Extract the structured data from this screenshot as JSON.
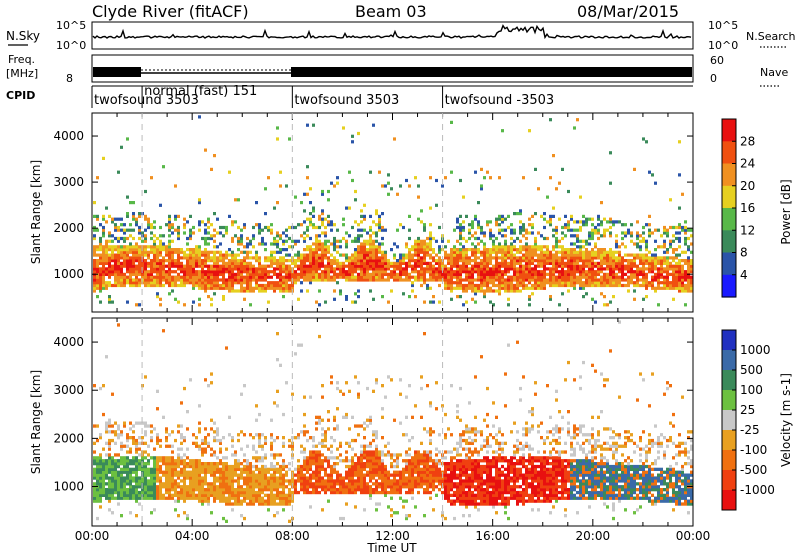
{
  "header": {
    "station": "Clyde River (fitACF)",
    "beam": "Beam 03",
    "date": "08/Mar/2015"
  },
  "panels": {
    "nsky_label": "N.Sky",
    "nsearch_label": "N.Search",
    "nsky_ticks_left": [
      "10^5",
      "10^0"
    ],
    "nsky_ticks_right": [
      "10^5",
      "10^0"
    ],
    "freq_label_1": "Freq.",
    "freq_label_2": "[MHz]",
    "freq_ticks": [
      "8"
    ],
    "nave_label": "Nave",
    "nave_ticks": [
      "60",
      "0"
    ],
    "cpid_label": "CPID",
    "cpid_segments": [
      {
        "label": "twofsound 3503",
        "start_h": 0,
        "end_h": 2
      },
      {
        "label": "normal (fast) 151",
        "start_h": 2,
        "end_h": 8
      },
      {
        "label": "twofsound 3503",
        "start_h": 8,
        "end_h": 14
      },
      {
        "label": "twofsound -3503",
        "start_h": 14,
        "end_h": 24
      }
    ]
  },
  "colors": {
    "power": [
      "#1a1aff",
      "#2a54a8",
      "#3a8a5a",
      "#58b848",
      "#e6d020",
      "#f09020",
      "#f05010",
      "#e81010"
    ],
    "velocity": [
      "#2030c0",
      "#3a6aa8",
      "#3a8a5a",
      "#6cc040",
      "#c8c8c8",
      "#e8a020",
      "#f07010",
      "#f04010",
      "#e81010"
    ]
  },
  "chart_data": [
    {
      "type": "heatmap",
      "name": "power",
      "ylabel": "Slant Range [km]",
      "xlabel": "",
      "ylim": [
        180,
        4500
      ],
      "y_ticks": [
        1000,
        2000,
        3000,
        4000
      ],
      "xlim_hours": [
        0,
        24
      ],
      "colorbar_label": "Power [dB]",
      "colorbar_ticks": [
        "28",
        "24",
        "20",
        "16",
        "12",
        "8",
        "4"
      ],
      "colorbar_range": [
        0,
        32
      ]
    },
    {
      "type": "heatmap",
      "name": "velocity",
      "ylabel": "Slant Range [km]",
      "xlabel": "Time UT",
      "ylim": [
        180,
        4500
      ],
      "y_ticks": [
        1000,
        2000,
        3000,
        4000
      ],
      "x_ticks": [
        "00:00",
        "04:00",
        "08:00",
        "12:00",
        "16:00",
        "20:00",
        "00:00"
      ],
      "xlim_hours": [
        0,
        24
      ],
      "colorbar_label": "Velocity [m s-1]",
      "colorbar_ticks": [
        "1000",
        "500",
        "100",
        "25",
        "-25",
        "-100",
        "-500",
        "-1000"
      ],
      "colorbar_range": [
        -1000,
        1000
      ]
    }
  ]
}
